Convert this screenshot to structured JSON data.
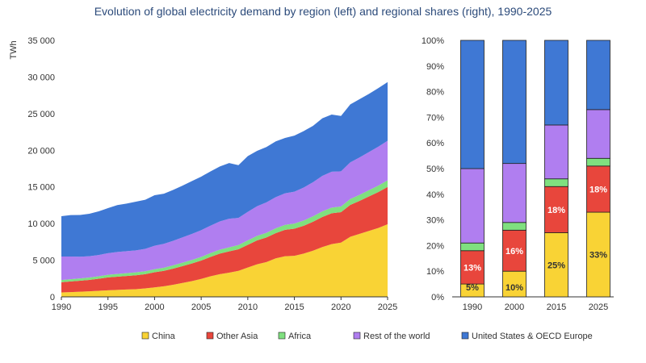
{
  "page_title": "Evolution of global electricity demand by region (left) and regional shares (right), 1990-2025",
  "colors": {
    "china": "#f9d335",
    "other_asia": "#e8463c",
    "africa": "#7fe07f",
    "rest_of_world": "#b07ef0",
    "us_oecd_europe": "#3f78d4"
  },
  "legend": [
    {
      "label": "China",
      "color": "#f9d335"
    },
    {
      "label": "Other Asia",
      "color": "#e8463c"
    },
    {
      "label": "Africa",
      "color": "#7fe07f"
    },
    {
      "label": "Rest of the world",
      "color": "#b07ef0"
    },
    {
      "label": "United States & OECD Europe",
      "color": "#3f78d4"
    }
  ],
  "chart_data": [
    {
      "type": "area",
      "stacked": true,
      "ylabel": "TWh",
      "xlim": [
        1990,
        2025
      ],
      "ylim": [
        0,
        35000
      ],
      "x_ticks": [
        1990,
        1995,
        2000,
        2005,
        2010,
        2015,
        2020,
        2025
      ],
      "y_ticks": [
        0,
        5000,
        10000,
        15000,
        20000,
        25000,
        30000,
        35000
      ],
      "y_tick_labels": [
        "0",
        "5 000",
        "10 000",
        "15 000",
        "20 000",
        "25 000",
        "30 000",
        "35 000"
      ],
      "x": [
        1990,
        1991,
        1992,
        1993,
        1994,
        1995,
        1996,
        1997,
        1998,
        1999,
        2000,
        2001,
        2002,
        2003,
        2004,
        2005,
        2006,
        2007,
        2008,
        2009,
        2010,
        2011,
        2012,
        2013,
        2014,
        2015,
        2016,
        2017,
        2018,
        2019,
        2020,
        2021,
        2022,
        2023,
        2024,
        2025
      ],
      "series": [
        {
          "name": "China",
          "color": "#f9d335",
          "values": [
            600,
            650,
            700,
            760,
            820,
            900,
            950,
            1000,
            1050,
            1150,
            1300,
            1450,
            1650,
            1900,
            2150,
            2450,
            2800,
            3100,
            3300,
            3550,
            4000,
            4450,
            4750,
            5250,
            5550,
            5600,
            5900,
            6300,
            6800,
            7200,
            7400,
            8200,
            8600,
            9000,
            9400,
            9900
          ]
        },
        {
          "name": "Other Asia",
          "color": "#e8463c",
          "values": [
            1400,
            1450,
            1500,
            1550,
            1650,
            1750,
            1800,
            1850,
            1900,
            1950,
            2050,
            2100,
            2200,
            2300,
            2400,
            2500,
            2650,
            2800,
            2900,
            2950,
            3100,
            3250,
            3350,
            3450,
            3600,
            3700,
            3800,
            3950,
            4100,
            4200,
            4150,
            4350,
            4500,
            4700,
            4900,
            5100
          ]
        },
        {
          "name": "Africa",
          "color": "#7fe07f",
          "values": [
            300,
            310,
            320,
            330,
            340,
            360,
            370,
            380,
            390,
            400,
            420,
            430,
            450,
            470,
            490,
            500,
            520,
            540,
            560,
            570,
            600,
            620,
            640,
            660,
            680,
            700,
            720,
            740,
            760,
            780,
            780,
            810,
            830,
            850,
            880,
            900
          ]
        },
        {
          "name": "Rest of the world",
          "color": "#b07ef0",
          "values": [
            3200,
            3100,
            2950,
            2900,
            2900,
            2950,
            3000,
            3000,
            3000,
            3050,
            3200,
            3250,
            3350,
            3450,
            3550,
            3650,
            3750,
            3850,
            3900,
            3700,
            3900,
            4050,
            4150,
            4250,
            4300,
            4350,
            4500,
            4650,
            4850,
            4900,
            4800,
            5000,
            5100,
            5200,
            5300,
            5400
          ]
        },
        {
          "name": "United States & OECD Europe",
          "color": "#3f78d4",
          "values": [
            5500,
            5650,
            5700,
            5800,
            5950,
            6150,
            6400,
            6500,
            6650,
            6700,
            6900,
            6850,
            6950,
            7050,
            7200,
            7300,
            7400,
            7500,
            7600,
            7200,
            7600,
            7550,
            7550,
            7600,
            7550,
            7650,
            7700,
            7700,
            7850,
            7800,
            7550,
            7900,
            7950,
            7950,
            8000,
            8000
          ]
        }
      ]
    },
    {
      "type": "bar",
      "stacked": true,
      "percent": true,
      "categories": [
        "1990",
        "2000",
        "2015",
        "2025"
      ],
      "ylim": [
        0,
        100
      ],
      "y_ticks": [
        0,
        10,
        20,
        30,
        40,
        50,
        60,
        70,
        80,
        90,
        100
      ],
      "y_tick_labels": [
        "0%",
        "10%",
        "20%",
        "30%",
        "40%",
        "50%",
        "60%",
        "70%",
        "80%",
        "90%",
        "100%"
      ],
      "series": [
        {
          "name": "China",
          "color": "#f9d335",
          "values": [
            5,
            10,
            25,
            33
          ],
          "labels": [
            "5%",
            "10%",
            "25%",
            "33%"
          ]
        },
        {
          "name": "Other Asia",
          "color": "#e8463c",
          "values": [
            13,
            16,
            18,
            18
          ],
          "labels": [
            "13%",
            "16%",
            "18%",
            "18%"
          ]
        },
        {
          "name": "Africa",
          "color": "#7fe07f",
          "values": [
            3,
            3,
            3,
            3
          ],
          "labels": [
            "",
            "",
            "",
            ""
          ]
        },
        {
          "name": "Rest of the world",
          "color": "#b07ef0",
          "values": [
            29,
            23,
            21,
            19
          ],
          "labels": [
            "",
            "",
            "",
            ""
          ]
        },
        {
          "name": "United States & OECD Europe",
          "color": "#3f78d4",
          "values": [
            50,
            48,
            33,
            27
          ],
          "labels": [
            "",
            "",
            "",
            ""
          ]
        }
      ]
    }
  ]
}
